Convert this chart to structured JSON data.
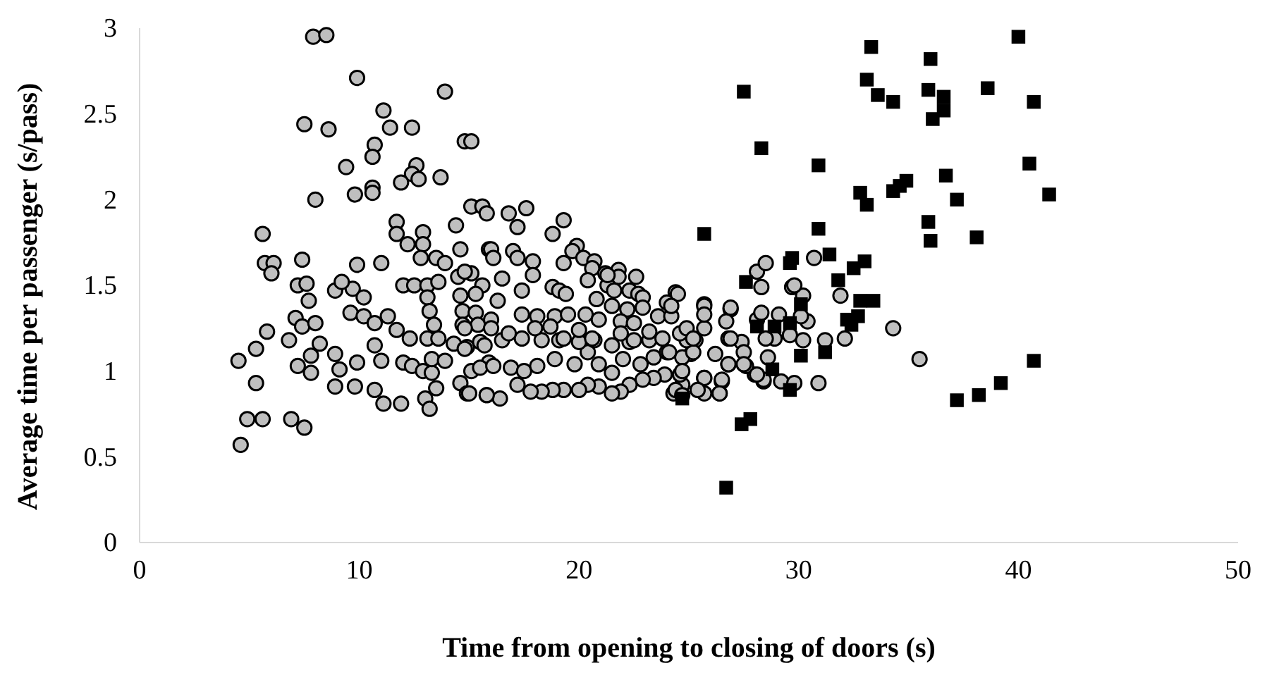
{
  "chart_data": {
    "type": "scatter",
    "xlabel": "Time from opening to closing of doors (s)",
    "ylabel": "Average time per passenger (s/pass)",
    "xlim": [
      0,
      50
    ],
    "xticks": [
      0,
      10,
      20,
      30,
      40,
      50
    ],
    "ylim": [
      0,
      3
    ],
    "yticks": [
      0,
      0.5,
      1,
      1.5,
      2,
      2.5,
      3
    ],
    "grid": false,
    "series": [
      {
        "color": "#bfbfbf",
        "marker": "circle",
        "x": [
          7.9,
          8.5,
          9.9,
          13.9,
          11.1,
          7.5,
          8.6,
          11.4,
          12.4,
          10.7,
          10.6,
          14.8,
          15.1,
          9.4,
          12.6,
          12.4,
          12.7,
          13.7,
          11.9,
          9.8,
          10.6,
          10.6,
          8.0,
          5.6,
          5.7,
          6.1,
          6.0,
          7.4,
          7.2,
          7.6,
          7.7,
          5.8,
          6.8,
          5.3,
          4.5,
          5.3,
          4.9,
          5.6,
          6.9,
          7.5,
          4.6,
          7.2,
          7.8,
          7.8,
          7.1,
          7.4,
          8.0,
          8.2,
          8.9,
          9.1,
          8.9,
          9.8,
          10.7,
          11.1,
          11.9,
          9.9,
          11.0,
          8.9,
          9.7,
          10.2,
          9.6,
          10.2,
          9.2,
          9.9,
          11.0,
          10.7,
          11.3,
          11.7,
          10.7,
          12.0,
          12.5,
          11.7,
          11.7,
          12.2,
          12.9,
          12.9,
          12.8,
          13.5,
          13.9,
          13.1,
          13.6,
          14.4,
          14.6,
          13.1,
          13.2,
          12.3,
          13.1,
          13.6,
          13.4,
          12.0,
          12.4,
          12.9,
          13.3,
          13.3,
          13.9,
          13.5,
          13.0,
          13.2,
          14.6,
          14.9,
          15.8,
          15.1,
          15.6,
          15.8,
          14.5,
          15.1,
          15.6,
          14.7,
          15.3,
          14.7,
          15.4,
          16.0,
          14.3,
          14.9,
          15.5,
          15.9,
          14.6,
          15.3,
          14.8,
          15.9,
          16.8,
          17.6,
          17.2,
          19.3,
          18.8,
          19.9,
          19.7,
          20.2,
          20.7,
          20.6,
          21.2,
          21.8,
          21.8,
          22.6,
          17.0,
          17.2,
          17.9,
          17.9,
          19.3,
          16.0,
          16.1,
          16.5,
          17.4,
          18.8,
          19.1,
          19.4,
          20.4,
          21.3,
          21.3,
          21.6,
          22.3,
          22.7,
          22.9,
          24.4,
          20.8,
          21.5,
          22.2,
          22.9,
          24.0,
          16.3,
          17.4,
          18.1,
          18.9,
          19.5,
          20.3,
          20.9,
          21.9,
          22.5,
          23.6,
          24.2,
          25.7,
          25.7,
          26.9,
          26.8,
          27.4,
          28.1,
          28.3,
          28.1,
          28.5,
          28.3,
          30.7,
          29.7,
          30.2,
          30.4,
          30.2,
          31.2,
          30.9,
          28.6,
          29.2,
          29.8,
          28.4,
          28.0,
          27.6,
          26.2,
          26.8,
          26.5,
          26.4,
          25.7,
          24.3,
          24.7,
          24.6,
          25.1,
          25.3,
          23.9,
          23.4,
          22.9,
          22.3,
          21.9,
          21.5,
          20.9,
          20.4,
          20.0,
          19.3,
          18.8,
          18.3,
          17.8,
          17.2,
          16.4,
          15.8,
          15.0,
          15.1,
          15.5,
          16.1,
          16.9,
          17.5,
          18.1,
          18.9,
          19.8,
          20.4,
          20.9,
          21.5,
          22.0,
          22.8,
          23.4,
          24.0,
          24.7,
          25.2,
          14.8,
          15.7,
          16.5,
          17.4,
          18.3,
          19.1,
          20.0,
          20.7,
          21.5,
          22.3,
          23.2,
          23.8,
          24.9,
          14.8,
          16.0,
          16.8,
          18.0,
          18.7,
          19.3,
          20.0,
          20.6,
          21.9,
          22.5,
          23.2,
          24.6,
          31.9,
          29.8,
          34.3,
          35.5,
          32.1,
          30.1,
          29.6,
          28.9,
          28.5,
          29.1,
          26.9,
          25.7,
          25.7,
          26.7,
          26.9,
          27.5,
          27.5,
          28.4,
          28.1,
          26.8,
          26.5,
          25.7,
          26.4,
          25.7,
          25.4,
          24.5,
          24.2,
          24.9,
          25.2,
          24.1,
          24.7,
          24.4,
          24.7
        ],
        "values": [
          2.95,
          2.96,
          2.71,
          2.63,
          2.52,
          2.44,
          2.41,
          2.42,
          2.42,
          2.32,
          2.25,
          2.34,
          2.34,
          2.19,
          2.2,
          2.15,
          2.12,
          2.13,
          2.1,
          2.03,
          2.07,
          2.04,
          2.0,
          1.8,
          1.63,
          1.63,
          1.57,
          1.65,
          1.5,
          1.51,
          1.41,
          1.23,
          1.18,
          1.13,
          1.06,
          0.93,
          0.72,
          0.72,
          0.72,
          0.67,
          0.57,
          1.03,
          0.99,
          1.09,
          1.31,
          1.26,
          1.28,
          1.16,
          1.1,
          1.01,
          0.91,
          0.91,
          0.89,
          0.81,
          0.81,
          1.05,
          1.06,
          1.47,
          1.48,
          1.43,
          1.34,
          1.32,
          1.52,
          1.62,
          1.63,
          1.28,
          1.32,
          1.24,
          1.15,
          1.5,
          1.5,
          1.87,
          1.8,
          1.74,
          1.81,
          1.74,
          1.66,
          1.66,
          1.63,
          1.5,
          1.52,
          1.85,
          1.71,
          1.43,
          1.35,
          1.19,
          1.19,
          1.19,
          1.27,
          1.05,
          1.03,
          1.0,
          0.99,
          1.07,
          1.06,
          0.9,
          0.84,
          0.78,
          0.93,
          0.87,
          0.86,
          1.96,
          1.96,
          1.92,
          1.55,
          1.57,
          1.5,
          1.35,
          1.34,
          1.27,
          1.27,
          1.3,
          1.16,
          1.14,
          1.17,
          1.05,
          1.44,
          1.45,
          1.58,
          1.71,
          1.92,
          1.95,
          1.84,
          1.88,
          1.8,
          1.73,
          1.7,
          1.66,
          1.64,
          1.6,
          1.57,
          1.59,
          1.55,
          1.55,
          1.7,
          1.66,
          1.64,
          1.56,
          1.63,
          1.71,
          1.66,
          1.54,
          1.47,
          1.49,
          1.47,
          1.45,
          1.53,
          1.5,
          1.56,
          1.47,
          1.47,
          1.45,
          1.43,
          1.46,
          1.42,
          1.38,
          1.36,
          1.37,
          1.4,
          1.41,
          1.33,
          1.32,
          1.32,
          1.33,
          1.33,
          1.3,
          1.29,
          1.28,
          1.32,
          1.32,
          1.39,
          1.25,
          1.36,
          1.19,
          1.17,
          1.3,
          1.34,
          1.58,
          1.63,
          1.49,
          1.66,
          1.49,
          1.44,
          1.29,
          1.18,
          1.18,
          0.93,
          1.08,
          0.94,
          0.93,
          0.94,
          0.98,
          1.03,
          1.1,
          1.04,
          0.94,
          0.87,
          0.96,
          0.87,
          0.92,
          0.98,
          1.1,
          1.18,
          0.98,
          0.96,
          0.95,
          0.92,
          0.88,
          0.87,
          0.91,
          0.92,
          0.89,
          0.89,
          0.89,
          0.88,
          0.88,
          0.92,
          0.84,
          0.86,
          0.87,
          1.0,
          1.02,
          1.03,
          1.02,
          1.0,
          1.03,
          1.07,
          1.04,
          1.11,
          1.04,
          0.99,
          1.07,
          1.04,
          1.08,
          1.11,
          1.08,
          1.11,
          1.13,
          1.15,
          1.18,
          1.19,
          1.18,
          1.18,
          1.17,
          1.18,
          1.15,
          1.17,
          1.18,
          1.19,
          1.18,
          1.25,
          1.25,
          1.22,
          1.25,
          1.26,
          1.19,
          1.24,
          1.19,
          1.22,
          1.18,
          1.23,
          1.22,
          1.44,
          1.5,
          1.25,
          1.07,
          1.19,
          1.32,
          1.21,
          1.19,
          1.19,
          1.33,
          1.37,
          1.38,
          1.33,
          1.29,
          1.19,
          1.11,
          1.04,
          0.95,
          0.98,
          1.04,
          0.95,
          0.96,
          0.87,
          0.87,
          0.89,
          1.45,
          1.38,
          1.25,
          1.19,
          1.11,
          1.0,
          0.89,
          0.86
        ]
      },
      {
        "color": "#000000",
        "marker": "square",
        "x": [
          40.0,
          33.3,
          36.0,
          27.5,
          33.1,
          33.6,
          34.3,
          35.9,
          36.6,
          36.6,
          36.1,
          38.6,
          40.7,
          28.3,
          30.9,
          40.5,
          41.4,
          32.8,
          33.1,
          34.3,
          34.6,
          34.9,
          36.7,
          37.2,
          35.9,
          36.0,
          38.1,
          25.7,
          30.9,
          31.4,
          29.7,
          29.6,
          33.0,
          32.5,
          27.6,
          31.8,
          32.8,
          33.4,
          30.1,
          32.2,
          32.7,
          32.4,
          28.1,
          28.9,
          29.6,
          30.1,
          31.2,
          28.8,
          29.6,
          24.7,
          27.8,
          27.4,
          26.7,
          40.7,
          39.2,
          38.2,
          37.2
        ],
        "values": [
          2.95,
          2.89,
          2.82,
          2.63,
          2.7,
          2.61,
          2.57,
          2.64,
          2.6,
          2.52,
          2.47,
          2.65,
          2.57,
          2.3,
          2.2,
          2.21,
          2.03,
          2.04,
          1.97,
          2.05,
          2.08,
          2.11,
          2.14,
          2.0,
          1.87,
          1.76,
          1.78,
          1.8,
          1.83,
          1.68,
          1.66,
          1.63,
          1.64,
          1.6,
          1.52,
          1.53,
          1.41,
          1.41,
          1.39,
          1.3,
          1.32,
          1.27,
          1.26,
          1.26,
          1.28,
          1.09,
          1.11,
          1.01,
          0.89,
          0.84,
          0.72,
          0.69,
          0.32,
          1.06,
          0.93,
          0.86,
          0.83
        ]
      }
    ]
  }
}
